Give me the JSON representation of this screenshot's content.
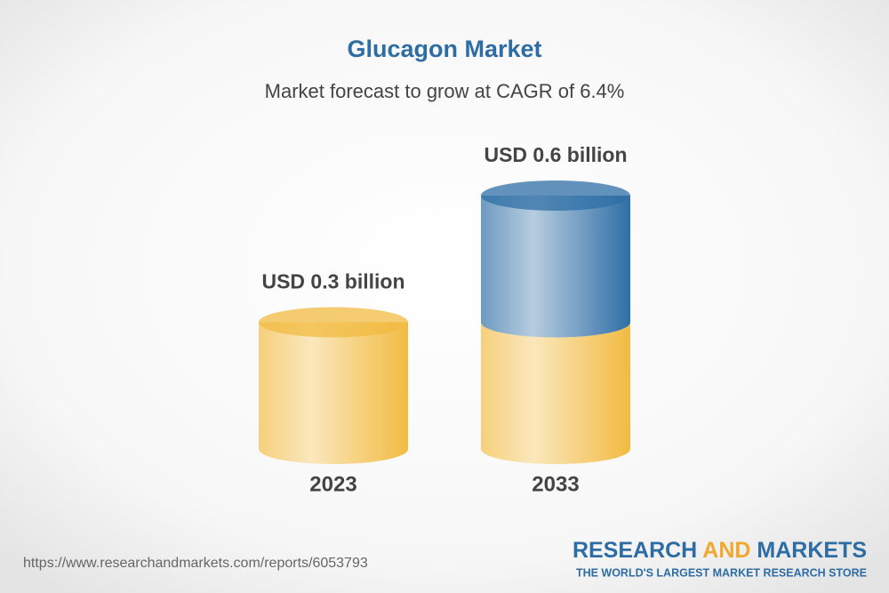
{
  "chart_data": {
    "type": "cylinder",
    "title": "Glucagon Market",
    "subtitle": "Market forecast to grow at CAGR of 6.4%",
    "categories": [
      "2023",
      "2033"
    ],
    "values": [
      0.3,
      0.6
    ],
    "value_labels": [
      "USD 0.3 billion",
      "USD 0.6 billion"
    ],
    "color": "#f2bb42",
    "growth_color": "#2f6fa6"
  },
  "footer": {
    "url": "https://www.researchandmarkets.com/reports/6053793",
    "brand": {
      "first": "RESEARCH",
      "middle": "AND",
      "last": "MARKETS"
    },
    "tagline": "THE WORLD'S LARGEST MARKET RESEARCH STORE"
  }
}
